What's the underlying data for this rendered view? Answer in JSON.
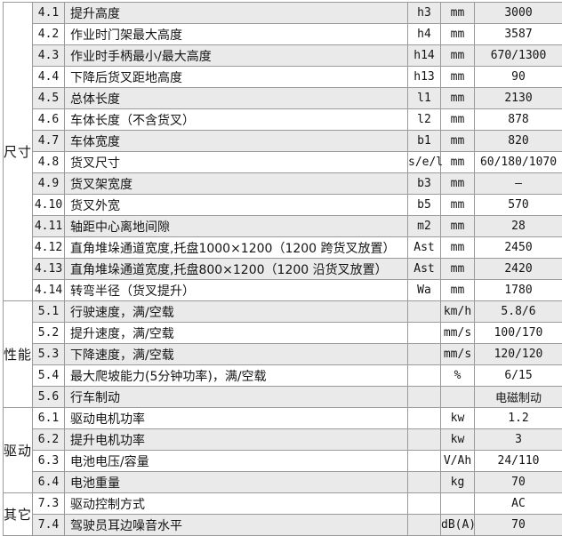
{
  "colors": {
    "stripe_row": "#eaeaea",
    "plain_row": "#ffffff",
    "border": "#9a9a9a",
    "text": "#141414"
  },
  "table": {
    "groups": [
      {
        "label": "尺寸",
        "rows": [
          {
            "no": "4.1",
            "desc": "提升高度",
            "sym": "h3",
            "unit": "mm",
            "value": "3000"
          },
          {
            "no": "4.2",
            "desc": "作业时门架最大高度",
            "sym": "h4",
            "unit": "mm",
            "value": "3587"
          },
          {
            "no": "4.3",
            "desc": "作业时手柄最小/最大高度",
            "sym": "h14",
            "unit": "mm",
            "value": "670/1300"
          },
          {
            "no": "4.4",
            "desc": "下降后货叉距地高度",
            "sym": "h13",
            "unit": "mm",
            "value": "90"
          },
          {
            "no": "4.5",
            "desc": "总体长度",
            "sym": "l1",
            "unit": "mm",
            "value": "2130"
          },
          {
            "no": "4.6",
            "desc": "车体长度（不含货叉）",
            "sym": "l2",
            "unit": "mm",
            "value": "878"
          },
          {
            "no": "4.7",
            "desc": "车体宽度",
            "sym": "b1",
            "unit": "mm",
            "value": "820"
          },
          {
            "no": "4.8",
            "desc": "货叉尺寸",
            "sym": "s/e/l",
            "unit": "mm",
            "value": "60/180/1070"
          },
          {
            "no": "4.9",
            "desc": "货叉架宽度",
            "sym": "b3",
            "unit": "mm",
            "value": "–"
          },
          {
            "no": "4.10",
            "desc": "货叉外宽",
            "sym": "b5",
            "unit": "mm",
            "value": "570"
          },
          {
            "no": "4.11",
            "desc": "轴距中心离地间隙",
            "sym": "m2",
            "unit": "mm",
            "value": "28"
          },
          {
            "no": "4.12",
            "desc": "直角堆垛通道宽度,托盘1000×1200（1200 跨货叉放置）",
            "sym": "Ast",
            "unit": "mm",
            "value": "2450"
          },
          {
            "no": "4.13",
            "desc": "直角堆垛通道宽度,托盘800×1200（1200 沿货叉放置）",
            "sym": "Ast",
            "unit": "mm",
            "value": "2420"
          },
          {
            "no": "4.14",
            "desc": "转弯半径（货叉提升）",
            "sym": "Wa",
            "unit": "mm",
            "value": "1780"
          }
        ]
      },
      {
        "label": "性能",
        "rows": [
          {
            "no": "5.1",
            "desc": "行驶速度，满/空载",
            "sym": "",
            "unit": "km/h",
            "value": "5.8/6"
          },
          {
            "no": "5.2",
            "desc": "提升速度，满/空载",
            "sym": "",
            "unit": "mm/s",
            "value": "100/170"
          },
          {
            "no": "5.3",
            "desc": "下降速度，满/空载",
            "sym": "",
            "unit": "mm/s",
            "value": "120/120"
          },
          {
            "no": "5.4",
            "desc": "最大爬坡能力(5分钟功率)，满/空载",
            "sym": "",
            "unit": "%",
            "value": "6/15"
          },
          {
            "no": "5.6",
            "desc": "行车制动",
            "sym": "",
            "unit": "",
            "value": "电磁制动"
          }
        ]
      },
      {
        "label": "驱动",
        "rows": [
          {
            "no": "6.1",
            "desc": "驱动电机功率",
            "sym": "",
            "unit": "kw",
            "value": "1.2"
          },
          {
            "no": "6.2",
            "desc": "提升电机功率",
            "sym": "",
            "unit": "kw",
            "value": "3"
          },
          {
            "no": "6.3",
            "desc": "电池电压/容量",
            "sym": "",
            "unit": "V/Ah",
            "value": "24/110"
          },
          {
            "no": "6.4",
            "desc": "电池重量",
            "sym": "",
            "unit": "kg",
            "value": "70"
          }
        ]
      },
      {
        "label": "其它",
        "rows": [
          {
            "no": "7.3",
            "desc": "驱动控制方式",
            "sym": "",
            "unit": "",
            "value": "AC"
          },
          {
            "no": "7.4",
            "desc": "驾驶员耳边噪音水平",
            "sym": "",
            "unit": "dB(A)",
            "value": "70"
          }
        ]
      }
    ]
  }
}
